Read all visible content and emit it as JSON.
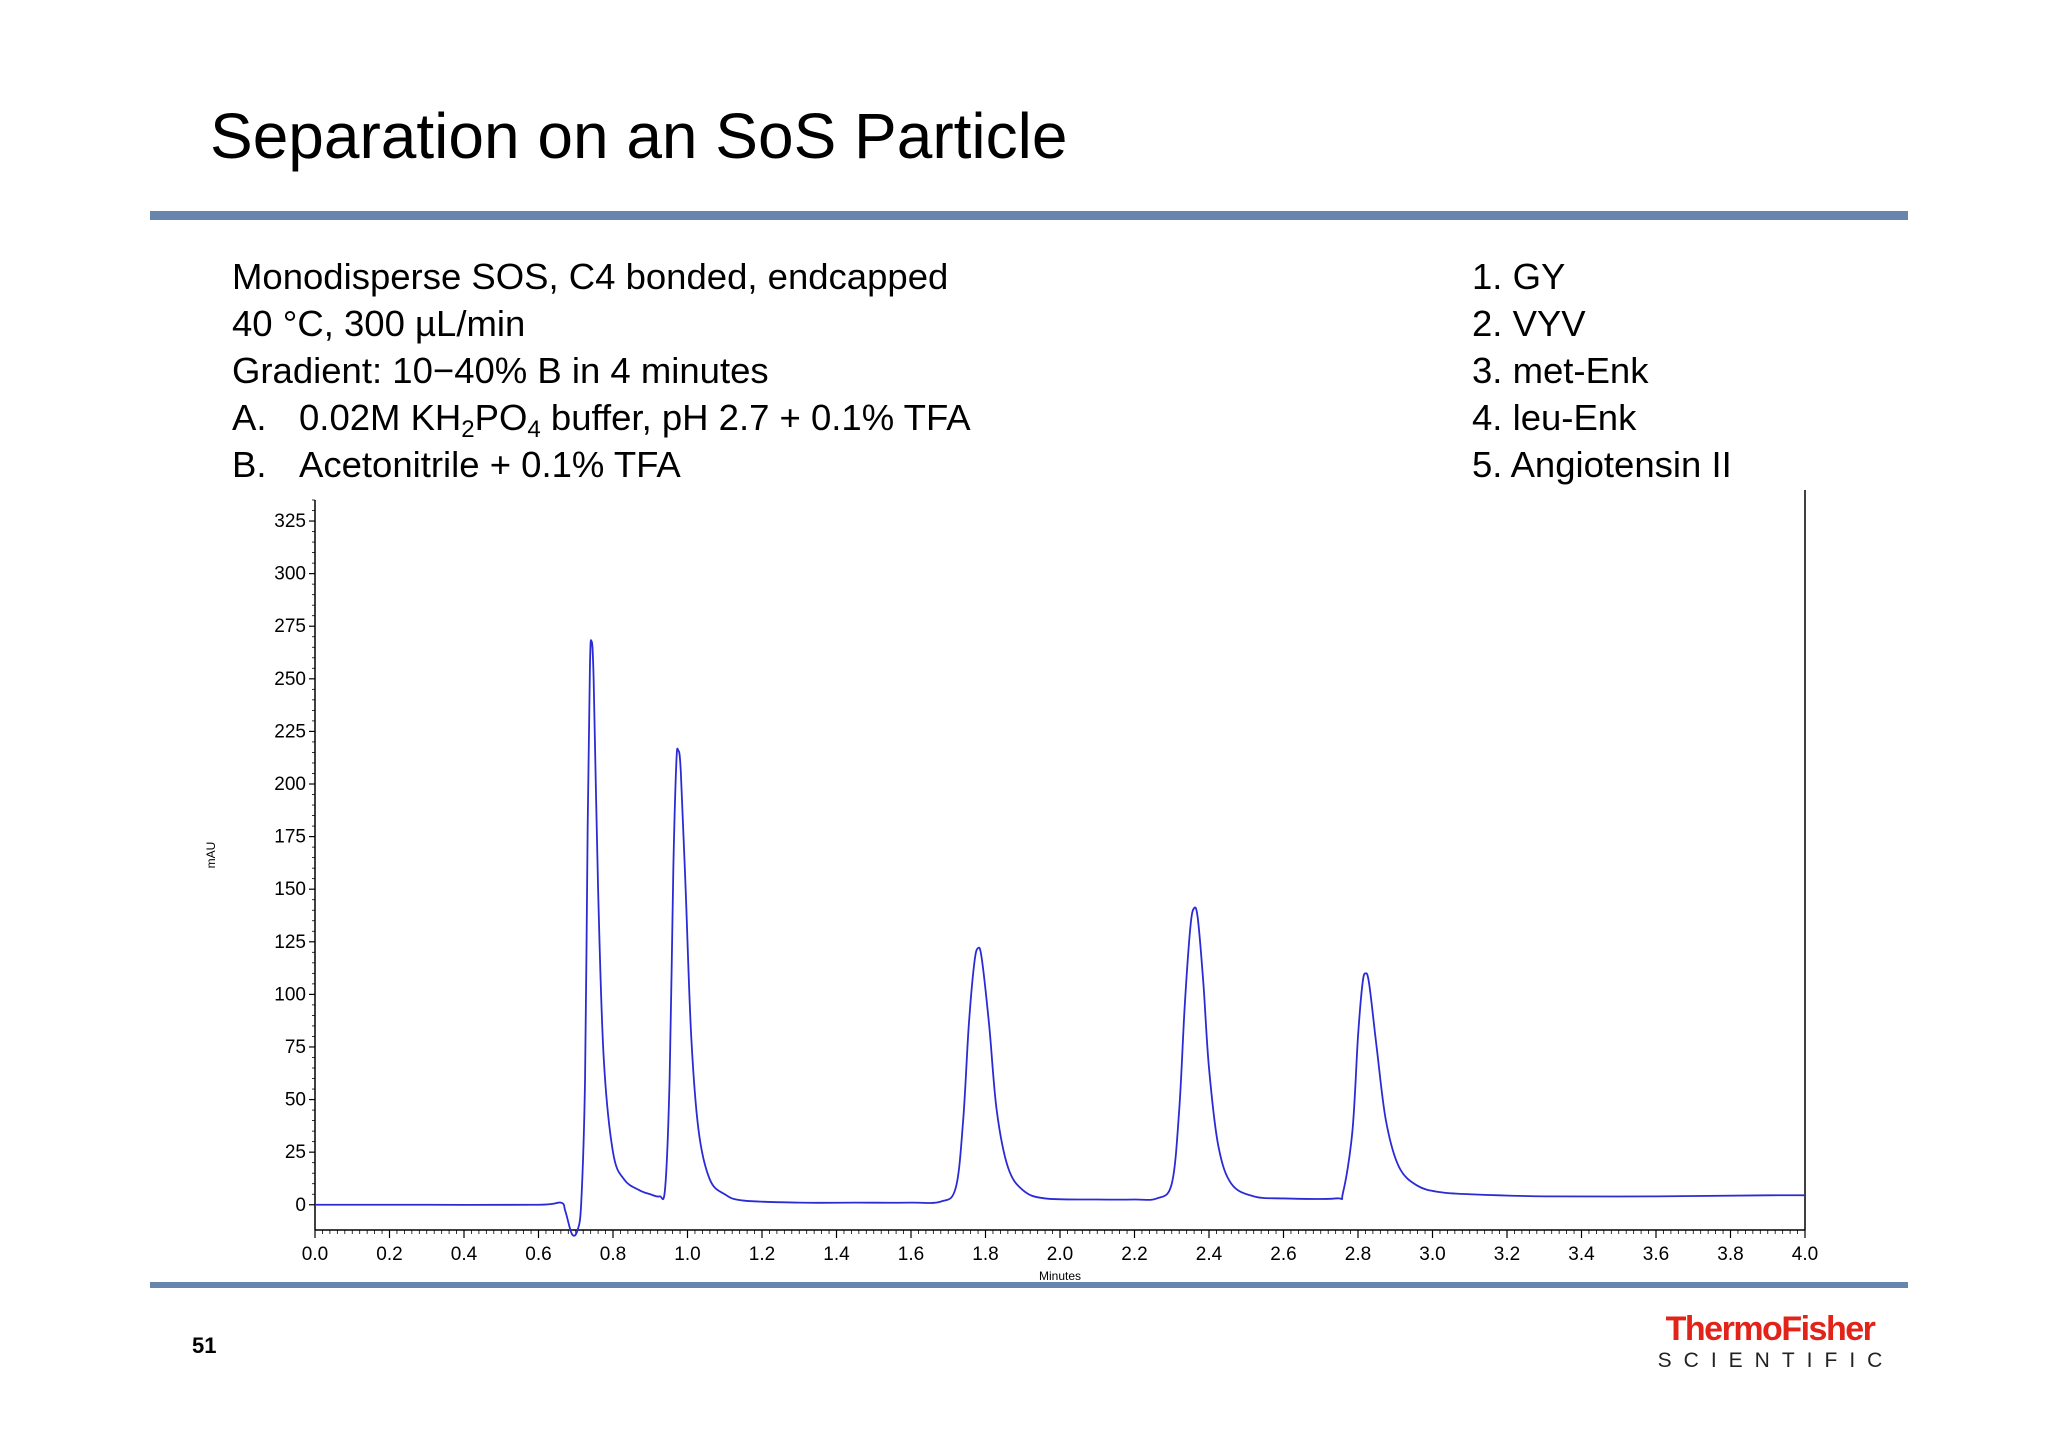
{
  "slide": {
    "title": "Separation on an SoS Particle",
    "page_number": "51"
  },
  "conditions": {
    "line1": "Monodisperse SOS, C4 bonded, endcapped",
    "line2": "40 °C, 300 µL/min",
    "line3": "Gradient: 10−40% B in 4 minutes",
    "a_letter": "A.",
    "a_text_1": "0.02M KH",
    "a_sub_1": "2",
    "a_text_2": "PO",
    "a_sub_2": "4",
    "a_text_3": " buffer, pH 2.7 + 0.1% TFA",
    "b_letter": "B.",
    "b_text": "Acetonitrile + 0.1% TFA"
  },
  "peak_list": [
    "1. GY",
    "2. VYV",
    "3. met-Enk",
    "4. leu-Enk",
    "5. Angiotensin II"
  ],
  "logo": {
    "main": "ThermoFisher",
    "sub": "SCIENTIFIC",
    "color": "#e2231a"
  },
  "chart_data": {
    "type": "line",
    "xlabel": "Minutes",
    "ylabel": "mAU",
    "xlim": [
      0,
      4
    ],
    "ylim": [
      -12,
      335
    ],
    "x_ticks": [
      "0.0",
      "0.2",
      "0.4",
      "0.6",
      "0.8",
      "1.0",
      "1.2",
      "1.4",
      "1.6",
      "1.8",
      "2.0",
      "2.2",
      "2.4",
      "2.6",
      "2.8",
      "3.0",
      "3.2",
      "3.4",
      "3.6",
      "3.8",
      "4.0"
    ],
    "y_ticks": [
      "0",
      "25",
      "50",
      "75",
      "100",
      "125",
      "150",
      "175",
      "200",
      "225",
      "250",
      "275",
      "300",
      "325"
    ],
    "line_color": "#2b2bd6",
    "grid": false,
    "peaks": [
      {
        "label": "GY",
        "retention_time": 0.74,
        "height": 268
      },
      {
        "label": "VYV",
        "retention_time": 0.975,
        "height": 216
      },
      {
        "label": "met-Enk",
        "retention_time": 1.78,
        "height": 122
      },
      {
        "label": "leu-Enk",
        "retention_time": 2.36,
        "height": 141
      },
      {
        "label": "Angiotensin II",
        "retention_time": 2.82,
        "height": 110
      }
    ],
    "series": [
      {
        "values": [
          [
            0.0,
            0
          ],
          [
            0.3,
            0
          ],
          [
            0.6,
            0
          ],
          [
            0.66,
            1
          ],
          [
            0.672,
            -3
          ],
          [
            0.69,
            -14
          ],
          [
            0.705,
            -12
          ],
          [
            0.715,
            2
          ],
          [
            0.725,
            60
          ],
          [
            0.732,
            180
          ],
          [
            0.738,
            255
          ],
          [
            0.742,
            268
          ],
          [
            0.748,
            250
          ],
          [
            0.76,
            150
          ],
          [
            0.775,
            70
          ],
          [
            0.8,
            25
          ],
          [
            0.83,
            12
          ],
          [
            0.87,
            7
          ],
          [
            0.9,
            5
          ],
          [
            0.925,
            4
          ],
          [
            0.94,
            8
          ],
          [
            0.952,
            60
          ],
          [
            0.962,
            160
          ],
          [
            0.97,
            210
          ],
          [
            0.975,
            216
          ],
          [
            0.982,
            206
          ],
          [
            0.995,
            150
          ],
          [
            1.01,
            80
          ],
          [
            1.03,
            35
          ],
          [
            1.06,
            12
          ],
          [
            1.1,
            5
          ],
          [
            1.15,
            2
          ],
          [
            1.3,
            1
          ],
          [
            1.45,
            1
          ],
          [
            1.6,
            1
          ],
          [
            1.68,
            1.5
          ],
          [
            1.72,
            8
          ],
          [
            1.74,
            40
          ],
          [
            1.755,
            85
          ],
          [
            1.77,
            115
          ],
          [
            1.78,
            122
          ],
          [
            1.79,
            117
          ],
          [
            1.81,
            85
          ],
          [
            1.83,
            45
          ],
          [
            1.86,
            18
          ],
          [
            1.9,
            7
          ],
          [
            1.96,
            3
          ],
          [
            2.1,
            2.5
          ],
          [
            2.2,
            2.5
          ],
          [
            2.26,
            3
          ],
          [
            2.3,
            10
          ],
          [
            2.32,
            45
          ],
          [
            2.335,
            95
          ],
          [
            2.35,
            132
          ],
          [
            2.36,
            141
          ],
          [
            2.37,
            136
          ],
          [
            2.385,
            105
          ],
          [
            2.4,
            65
          ],
          [
            2.425,
            28
          ],
          [
            2.46,
            10
          ],
          [
            2.52,
            4
          ],
          [
            2.6,
            3
          ],
          [
            2.74,
            3
          ],
          [
            2.76,
            6
          ],
          [
            2.785,
            35
          ],
          [
            2.8,
            80
          ],
          [
            2.812,
            105
          ],
          [
            2.82,
            110
          ],
          [
            2.83,
            105
          ],
          [
            2.85,
            75
          ],
          [
            2.875,
            40
          ],
          [
            2.91,
            18
          ],
          [
            2.96,
            9
          ],
          [
            3.02,
            6
          ],
          [
            3.1,
            5
          ],
          [
            3.3,
            4
          ],
          [
            3.6,
            4
          ],
          [
            3.9,
            4.5
          ],
          [
            4.0,
            4.5
          ]
        ]
      }
    ]
  }
}
